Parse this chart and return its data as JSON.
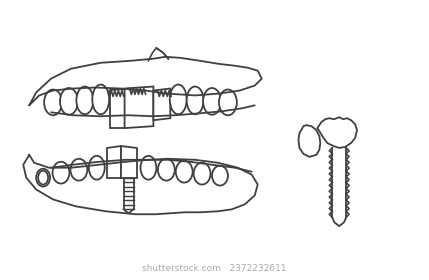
{
  "background_color": "#ffffff",
  "line_color": "#404040",
  "line_width": 1.3,
  "watermark": "shutterstock.com · 2372232611",
  "watermark_color": "#aaaaaa",
  "watermark_fontsize": 6.5
}
